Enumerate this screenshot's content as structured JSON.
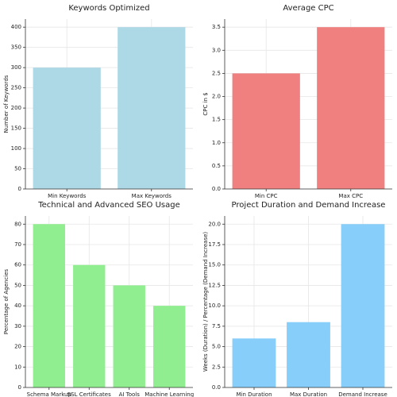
{
  "chart_data": [
    {
      "type": "bar",
      "title": "Keywords Optimized",
      "ylabel": "Number of Keywords",
      "categories": [
        "Min Keywords",
        "Max Keywords"
      ],
      "values": [
        300,
        400
      ],
      "color": "#add8e6",
      "ylim": [
        0,
        420
      ],
      "yticks": [
        0,
        50,
        100,
        150,
        200,
        250,
        300,
        350,
        400
      ],
      "grid": true
    },
    {
      "type": "bar",
      "title": "Average CPC",
      "ylabel": "CPC in $",
      "categories": [
        "Min CPC",
        "Max CPC"
      ],
      "values": [
        2.5,
        3.5
      ],
      "color": "#f08080",
      "ylim": [
        0,
        3.675
      ],
      "yticks": [
        {
          "value": 0,
          "label": "0.0"
        },
        0.5,
        {
          "value": 1,
          "label": "1.0"
        },
        1.5,
        {
          "value": 2,
          "label": "2.0"
        },
        2.5,
        {
          "value": 3,
          "label": "3.0"
        },
        3.5
      ],
      "grid": true
    },
    {
      "type": "bar",
      "title": "Technical and Advanced SEO Usage",
      "ylabel": "Percentage of Agencies",
      "categories": [
        "Schema Markup",
        "SSL Certificates",
        "AI Tools",
        "Machine Learning"
      ],
      "values": [
        80,
        60,
        50,
        40
      ],
      "color": "#90ee90",
      "ylim": [
        0,
        84
      ],
      "yticks": [
        0,
        10,
        20,
        30,
        40,
        50,
        60,
        70,
        80
      ],
      "grid": true
    },
    {
      "type": "bar",
      "title": "Project Duration and Demand Increase",
      "ylabel": "Weeks (Duration) / Percentage (Demand Increase)",
      "categories": [
        "Min Duration",
        "Max Duration",
        "Demand Increase"
      ],
      "values": [
        6,
        8,
        20
      ],
      "color": "#87cefa",
      "ylim": [
        0,
        21
      ],
      "yticks": [
        {
          "value": 0,
          "label": "0.0"
        },
        2.5,
        {
          "value": 5,
          "label": "5.0"
        },
        7.5,
        {
          "value": 10,
          "label": "10.0"
        },
        12.5,
        {
          "value": 15,
          "label": "15.0"
        },
        17.5,
        {
          "value": 20,
          "label": "20.0"
        }
      ],
      "grid": true
    }
  ]
}
